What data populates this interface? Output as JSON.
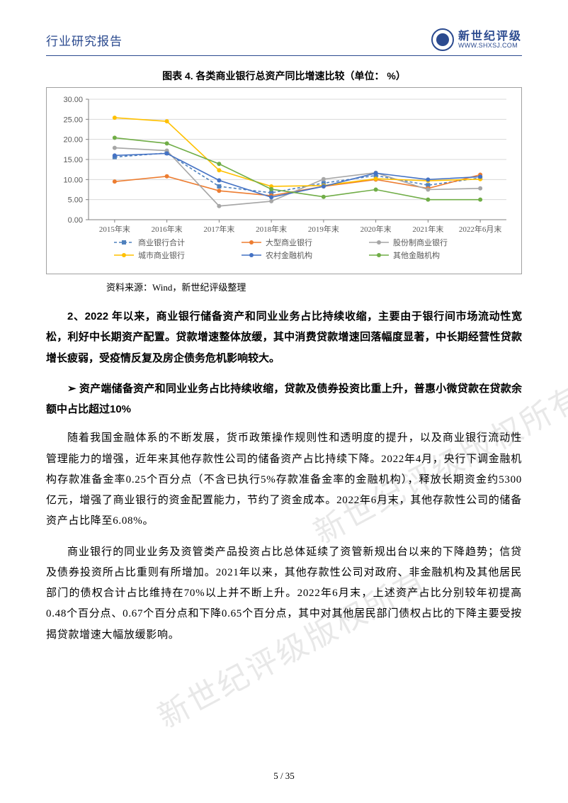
{
  "header": {
    "title": "行业研究报告",
    "logo_text": "新世纪评级",
    "logo_url": "WWW.SHXSJ.COM"
  },
  "chart": {
    "title": "图表 4.  各类商业银行总资产同比增速比较（单位：  %）",
    "type": "line",
    "source": "资料来源：Wind，新世纪评级整理",
    "background_color": "#ffffff",
    "grid_color": "#d9d9d9",
    "axis_color": "#808080",
    "label_fontsize": 11,
    "ylim": [
      0,
      30
    ],
    "ytick_step": 5,
    "yticks": [
      "0.00",
      "5.00",
      "10.00",
      "15.00",
      "20.00",
      "25.00",
      "30.00"
    ],
    "categories": [
      "2015年末",
      "2016年末",
      "2017年末",
      "2018年末",
      "2019年末",
      "2020年末",
      "2021年末",
      "2022年6月末"
    ],
    "series": [
      {
        "name": "商业银行合计",
        "color": "#4f81bd",
        "dash": "4,3",
        "marker": "square",
        "values": [
          15.6,
          16.6,
          8.3,
          6.7,
          9.1,
          11.0,
          8.6,
          10.4
        ]
      },
      {
        "name": "大型商业银行",
        "color": "#ed7d31",
        "dash": "",
        "marker": "circle",
        "values": [
          9.5,
          10.8,
          7.2,
          6.0,
          8.3,
          10.0,
          7.8,
          11.2
        ]
      },
      {
        "name": "股份制商业银行",
        "color": "#a6a6a6",
        "dash": "",
        "marker": "circle",
        "values": [
          17.9,
          17.2,
          3.4,
          4.6,
          10.1,
          11.7,
          7.5,
          7.8
        ]
      },
      {
        "name": "城市商业银行",
        "color": "#ffc000",
        "dash": "",
        "marker": "circle",
        "values": [
          25.4,
          24.5,
          12.3,
          8.3,
          8.5,
          10.2,
          9.7,
          10.1
        ]
      },
      {
        "name": "农村金融机构",
        "color": "#4472c4",
        "dash": "",
        "marker": "circle",
        "values": [
          16.0,
          16.5,
          9.8,
          5.6,
          8.3,
          11.6,
          10.0,
          10.7
        ]
      },
      {
        "name": "其他金融机构",
        "color": "#70ad47",
        "dash": "",
        "marker": "circle",
        "values": [
          20.4,
          19.0,
          13.9,
          7.6,
          5.7,
          7.5,
          5.0,
          5.0
        ]
      }
    ]
  },
  "content": {
    "p1": "2、2022 年以来，商业银行储备资产和同业业务占比持续收缩，主要由于银行间市场流动性宽松，利好中长期资产配置。贷款增速整体放缓，其中消费贷款增速回落幅度显著，中长期经营性贷款增长疲弱，受疫情反复及房企债务危机影响较大。",
    "bullet_icon": "➢",
    "p2": "资产端储备资产和同业业务占比持续收缩，贷款及债券投资比重上升，普惠小微贷款在贷款余额中占比超过10%",
    "p3": "随着我国金融体系的不断发展，货币政策操作规则性和透明度的提升，以及商业银行流动性管理能力的增强，近年来其他存款性公司的储备资产占比持续下降。2022年4月，央行下调金融机构存款准备金率0.25个百分点（不含已执行5%存款准备金率的金融机构），释放长期资金约5300亿元，增强了商业银行的资金配置能力，节约了资金成本。2022年6月末，其他存款性公司的储备资产占比降至6.08%。",
    "p4": "商业银行的同业业务及资管类产品投资占比总体延续了资管新规出台以来的下降趋势；信贷及债券投资所占比重则有所增加。2021年以来，其他存款性公司对政府、非金融机构及其他居民部门的债权合计占比维持在70%以上并不断上升。2022年6月末，上述资产占比分别较年初提高0.48个百分点、0.67个百分点和下降0.65个百分点，其中对其他居民部门债权占比的下降主要受按揭贷款增速大幅放缓影响。"
  },
  "watermark": "新世纪评级版权所有",
  "footer": "5 / 35"
}
